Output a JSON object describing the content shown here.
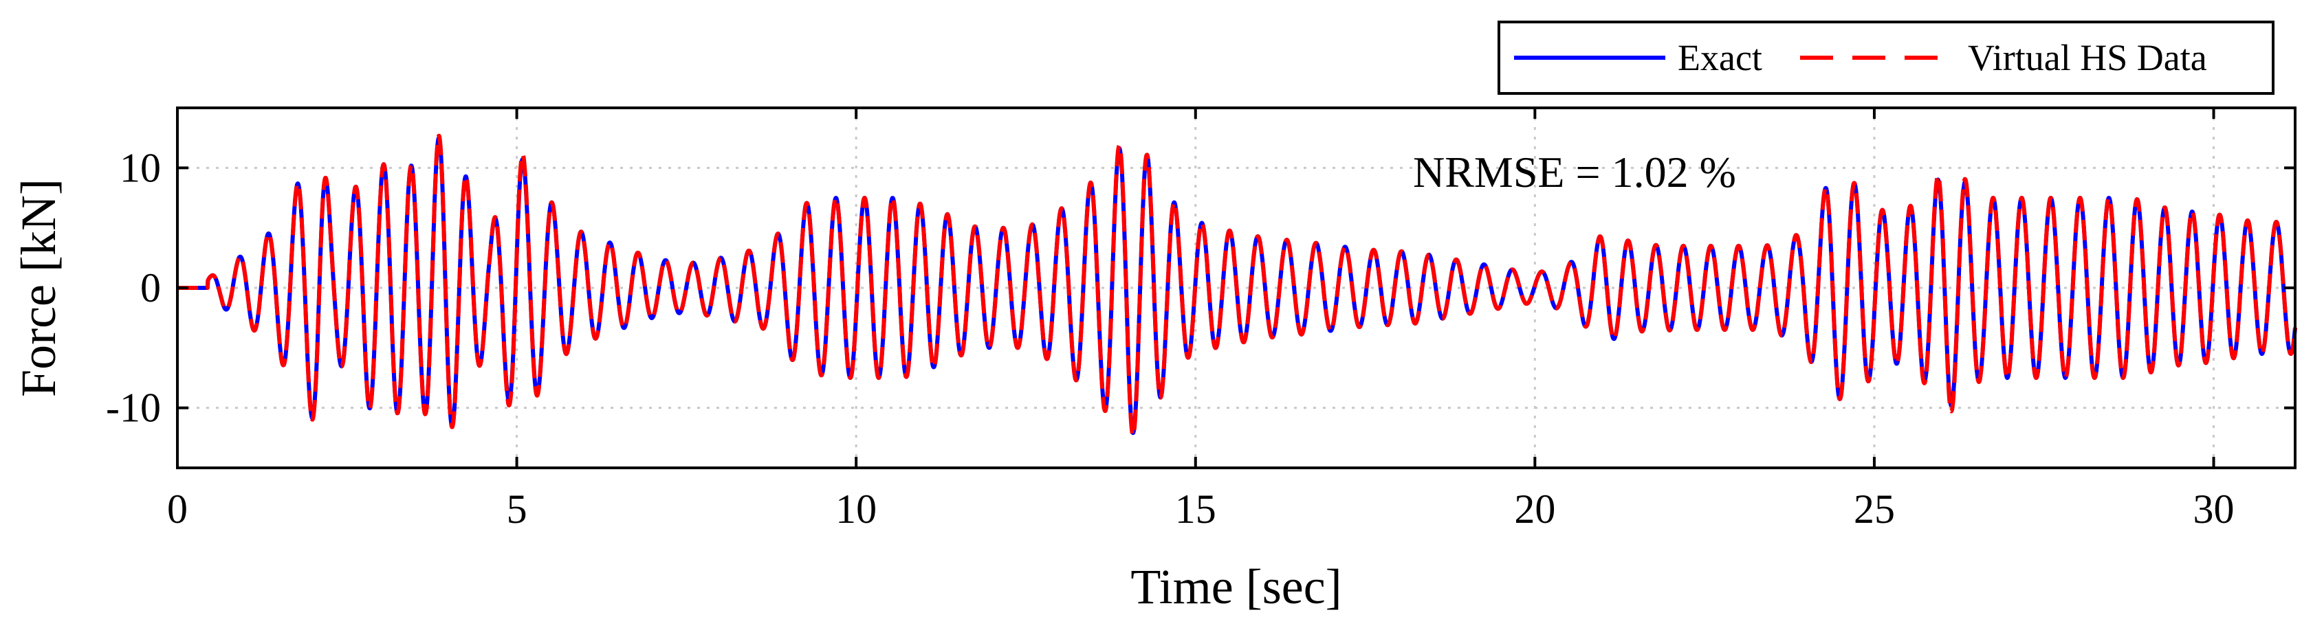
{
  "chart_data": {
    "type": "line",
    "title": "",
    "xlabel": "Time [sec]",
    "ylabel": "Force [kN]",
    "xlim": [
      0,
      31.2
    ],
    "ylim": [
      -15,
      15
    ],
    "xticks": [
      0,
      5,
      10,
      15,
      20,
      25,
      30
    ],
    "yticks": [
      -10,
      0,
      10
    ],
    "xtick_labels": [
      "0",
      "5",
      "10",
      "15",
      "20",
      "25",
      "30"
    ],
    "ytick_labels": [
      "-10",
      "0",
      "10"
    ],
    "grid": true,
    "legend_position": "top-right-outside",
    "annotation": "NRMSE = 1.02 %",
    "series": [
      {
        "name": "Exact",
        "color": "#0000ff",
        "line_style": "solid",
        "x": [
          0,
          0.5,
          0.9,
          1.4,
          1.8,
          2.1,
          2.3,
          2.8,
          3.2,
          3.6,
          3.9,
          4.2,
          4.6,
          5.0,
          5.4,
          5.8,
          6.5,
          7.0,
          7.5,
          8.0,
          8.7,
          9.2,
          9.7,
          10.2,
          10.7,
          11.2,
          11.8,
          12.5,
          13.0,
          13.5,
          14.0,
          14.3,
          14.8,
          15.3,
          16.0,
          16.7,
          17.5,
          18.2,
          19.0,
          19.6,
          20.0,
          20.5,
          21.0,
          21.6,
          22.2,
          22.8,
          23.4,
          23.9,
          24.4,
          24.8,
          25.2,
          25.6,
          26.1,
          26.6,
          27.1,
          27.6,
          28.2,
          28.8,
          29.4,
          30.0,
          30.6,
          31.2
        ],
        "envelope": [
          0.5,
          1.0,
          2.5,
          4.8,
          9.0,
          12.0,
          5.5,
          10.0,
          10.5,
          10.0,
          13.0,
          10.0,
          4.5,
          11.5,
          8.0,
          5.0,
          3.5,
          2.5,
          2.0,
          2.5,
          3.5,
          7.0,
          7.5,
          7.5,
          7.5,
          6.5,
          5.0,
          5.0,
          6.5,
          9.0,
          12.5,
          11.0,
          6.0,
          5.0,
          4.2,
          3.8,
          3.2,
          3.0,
          2.2,
          1.6,
          1.2,
          2.0,
          4.5,
          3.6,
          3.5,
          3.5,
          3.5,
          4.5,
          9.5,
          8.5,
          6.0,
          7.0,
          10.0,
          7.5,
          7.5,
          7.5,
          7.5,
          7.5,
          6.5,
          6.2,
          5.5,
          5.5
        ],
        "frequency_hz": 2.4
      },
      {
        "name": "Virtual HS Data",
        "color": "#ff0000",
        "line_style": "dashed",
        "x": [
          0,
          0.5,
          0.9,
          1.4,
          1.8,
          2.1,
          2.3,
          2.8,
          3.2,
          3.6,
          3.9,
          4.2,
          4.6,
          5.0,
          5.4,
          5.8,
          6.5,
          7.0,
          7.5,
          8.0,
          8.7,
          9.2,
          9.7,
          10.2,
          10.7,
          11.2,
          11.8,
          12.5,
          13.0,
          13.5,
          14.0,
          14.3,
          14.8,
          15.3,
          16.0,
          16.7,
          17.5,
          18.2,
          19.0,
          19.6,
          20.0,
          20.5,
          21.0,
          21.6,
          22.2,
          22.8,
          23.4,
          23.9,
          24.4,
          24.8,
          25.2,
          25.6,
          26.1,
          26.6,
          27.1,
          27.6,
          28.2,
          28.8,
          29.4,
          30.0,
          30.6,
          31.2
        ],
        "envelope": [
          0.5,
          1.0,
          2.5,
          4.8,
          9.0,
          12.2,
          5.5,
          10.0,
          10.5,
          10.0,
          13.2,
          10.0,
          4.5,
          12.0,
          8.0,
          5.0,
          3.5,
          2.5,
          2.0,
          2.5,
          3.5,
          7.0,
          7.5,
          7.5,
          7.5,
          6.5,
          5.0,
          5.0,
          6.5,
          9.0,
          12.8,
          11.0,
          6.0,
          5.0,
          4.2,
          3.8,
          3.2,
          3.0,
          2.2,
          1.6,
          1.2,
          2.0,
          4.5,
          3.6,
          3.5,
          3.5,
          3.5,
          4.5,
          9.5,
          8.5,
          6.0,
          7.0,
          10.5,
          7.5,
          7.5,
          7.5,
          7.5,
          7.5,
          6.5,
          6.2,
          5.5,
          5.5
        ],
        "frequency_hz": 2.4
      }
    ]
  }
}
